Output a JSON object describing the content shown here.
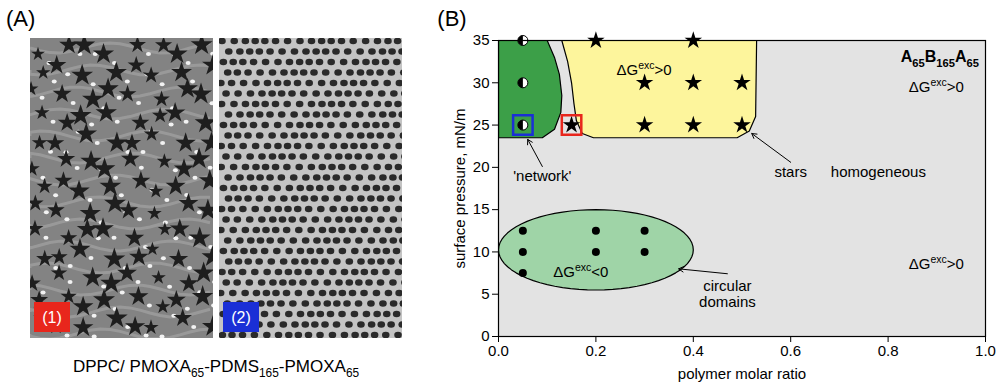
{
  "panel_a": {
    "label": "(A)",
    "images": [
      {
        "label": "(1)",
        "color": "#e8261c"
      },
      {
        "label": "(2)",
        "color": "#1a2fd6"
      }
    ],
    "caption": [
      {
        "text": "DPPC/ PMOXA"
      },
      {
        "sub": "65"
      },
      {
        "text": "-PDMS"
      },
      {
        "sub": "165"
      },
      {
        "text": "-PMOXA"
      },
      {
        "sub": "65"
      }
    ]
  },
  "chart_data": {
    "type": "scatter",
    "panel_label": "(B)",
    "title": [
      {
        "text": "A"
      },
      {
        "sub": "65"
      },
      {
        "text": "B"
      },
      {
        "sub": "165"
      },
      {
        "text": "A"
      },
      {
        "sub": "65"
      }
    ],
    "x_label": "polymer molar ratio",
    "y_label": "surface pressure, mN/m",
    "xlim": [
      0,
      1
    ],
    "ylim": [
      0,
      35
    ],
    "xticks": [
      {
        "value": 0,
        "label": "0.0"
      },
      {
        "value": 0.2,
        "label": "0.2"
      },
      {
        "value": 0.4,
        "label": "0.4"
      },
      {
        "value": 0.6,
        "label": "0.6"
      },
      {
        "value": 0.8,
        "label": "0.8"
      },
      {
        "value": 1,
        "label": "1.0"
      }
    ],
    "yticks": [
      0,
      5,
      10,
      15,
      20,
      25,
      30,
      35
    ],
    "background_color": "#e3e3e3",
    "regions": [
      {
        "color": "#3c9f48",
        "boundary": [
          [
            0,
            23.5
          ],
          [
            0.09,
            23.5
          ],
          [
            0.115,
            24.5
          ],
          [
            0.128,
            26.5
          ],
          [
            0.13,
            28.5
          ],
          [
            0.125,
            31
          ],
          [
            0.115,
            33
          ],
          [
            0.1,
            35
          ],
          [
            0,
            35
          ]
        ]
      },
      {
        "color": "#fdf59c",
        "boundary": [
          [
            0.13,
            35
          ],
          [
            0.142,
            32.5
          ],
          [
            0.15,
            30
          ],
          [
            0.155,
            27.5
          ],
          [
            0.16,
            25.5
          ],
          [
            0.172,
            24
          ],
          [
            0.195,
            23.5
          ],
          [
            0.49,
            23.5
          ],
          [
            0.515,
            24.3
          ],
          [
            0.528,
            26
          ],
          [
            0.53,
            35
          ]
        ]
      },
      {
        "color": "#9fd4a7",
        "ellipse": {
          "cx": 0.2,
          "cy": 10.25,
          "rx": 0.2,
          "ry": 4.75
        }
      }
    ],
    "series": [
      {
        "marker": "half-circle",
        "color": "#000000",
        "x": [
          0.05,
          0.05,
          0.05
        ],
        "y": [
          35,
          30,
          25
        ]
      },
      {
        "marker": "star",
        "color": "#000000",
        "x": [
          0.15,
          0.3,
          0.4,
          0.5,
          0.3,
          0.4,
          0.5,
          0.2,
          0.4
        ],
        "y": [
          25,
          25,
          25,
          25,
          30,
          30,
          30,
          35,
          35
        ]
      },
      {
        "marker": "circle",
        "color": "#000000",
        "x": [
          0.05,
          0.2,
          0.3,
          0.05,
          0.2,
          0.3,
          0.05
        ],
        "y": [
          12.5,
          12.5,
          12.5,
          10,
          10,
          10,
          7.5
        ]
      },
      {
        "marker": "square",
        "color": "#1a2fd6",
        "x": [
          0.05
        ],
        "y": [
          25
        ]
      },
      {
        "marker": "square",
        "color": "#e8261c",
        "x": [
          0.15
        ],
        "y": [
          25
        ]
      }
    ],
    "annotations": [
      {
        "text": "'network'",
        "x": 0.09,
        "y": 19,
        "arrow_to": [
          0.06,
          23.3
        ]
      },
      {
        "text": "stars",
        "x": 0.6,
        "y": 19.5,
        "arrow_to": [
          0.52,
          24
        ]
      },
      {
        "text": "circular\ndomains",
        "x": 0.47,
        "y": 5,
        "arrow_to": [
          0.37,
          8
        ]
      },
      {
        "text": "homogeneous",
        "x": 0.78,
        "y": 19.5
      },
      {
        "parts": [
          {
            "text": "ΔG"
          },
          {
            "sup": "exc"
          },
          {
            "text": ">0"
          }
        ],
        "x": 0.3,
        "y": 31.5
      },
      {
        "parts": [
          {
            "text": "ΔG"
          },
          {
            "sup": "exc"
          },
          {
            "text": ">0"
          }
        ],
        "x": 0.9,
        "y": 29.5
      },
      {
        "parts": [
          {
            "text": "ΔG"
          },
          {
            "sup": "exc"
          },
          {
            "text": ">0"
          }
        ],
        "x": 0.9,
        "y": 8.5
      },
      {
        "parts": [
          {
            "text": "ΔG"
          },
          {
            "sup": "exc"
          },
          {
            "text": "<0"
          }
        ],
        "x": 0.17,
        "y": 7.6
      }
    ]
  }
}
